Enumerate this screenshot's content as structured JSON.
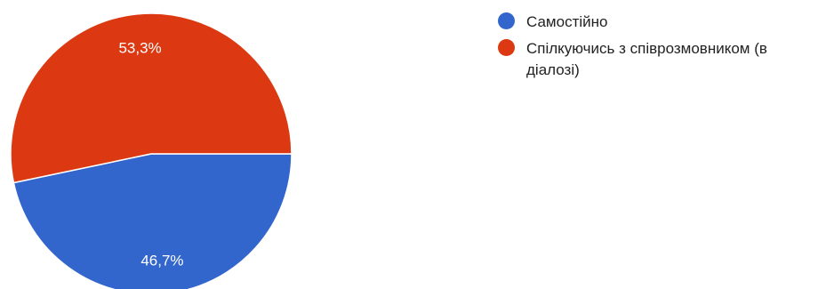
{
  "chart_data": {
    "type": "pie",
    "slices": [
      {
        "label": "Самостійно",
        "value": 46.7,
        "display": "46,7%",
        "color": "#3366cc"
      },
      {
        "label": "Спілкуючись з співрозмовником (в діалозі)",
        "value": 53.3,
        "display": "53,3%",
        "color": "#dc3912"
      }
    ],
    "legend_position": "right",
    "title": ""
  }
}
